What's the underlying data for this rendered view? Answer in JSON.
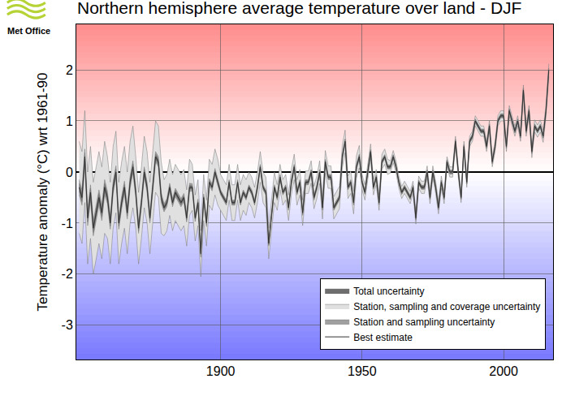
{
  "chart_data": {
    "type": "line",
    "title": "Northern hemisphere average temperature over land - DJF",
    "y_label": "Temperature anomaly (°C) wrt 1961-90",
    "logo": "Met Office",
    "x": [
      1850,
      1851,
      1852,
      1853,
      1854,
      1855,
      1856,
      1857,
      1858,
      1859,
      1860,
      1861,
      1862,
      1863,
      1864,
      1865,
      1866,
      1867,
      1868,
      1869,
      1870,
      1871,
      1872,
      1873,
      1874,
      1875,
      1876,
      1877,
      1878,
      1879,
      1880,
      1881,
      1882,
      1883,
      1884,
      1885,
      1886,
      1887,
      1888,
      1889,
      1890,
      1891,
      1892,
      1893,
      1894,
      1895,
      1896,
      1897,
      1898,
      1899,
      1900,
      1901,
      1902,
      1903,
      1904,
      1905,
      1906,
      1907,
      1908,
      1909,
      1910,
      1911,
      1912,
      1913,
      1914,
      1915,
      1916,
      1917,
      1918,
      1919,
      1920,
      1921,
      1922,
      1923,
      1924,
      1925,
      1926,
      1927,
      1928,
      1929,
      1930,
      1931,
      1932,
      1933,
      1934,
      1935,
      1936,
      1937,
      1938,
      1939,
      1940,
      1941,
      1942,
      1943,
      1944,
      1945,
      1946,
      1947,
      1948,
      1949,
      1950,
      1951,
      1952,
      1953,
      1954,
      1955,
      1956,
      1957,
      1958,
      1959,
      1960,
      1961,
      1962,
      1963,
      1964,
      1965,
      1966,
      1967,
      1968,
      1969,
      1970,
      1971,
      1972,
      1973,
      1974,
      1975,
      1976,
      1977,
      1978,
      1979,
      1980,
      1981,
      1982,
      1983,
      1984,
      1985,
      1986,
      1987,
      1988,
      1989,
      1990,
      1991,
      1992,
      1993,
      1994,
      1995,
      1996,
      1997,
      1998,
      1999,
      2000,
      2001,
      2002,
      2003,
      2004,
      2005,
      2006,
      2007,
      2008,
      2009,
      2010,
      2011,
      2012,
      2013,
      2014,
      2015,
      2016
    ],
    "series": [
      {
        "name": "Best estimate",
        "color": "#333333",
        "values": [
          -0.3,
          -0.5,
          0.3,
          -0.9,
          -0.4,
          -1.1,
          -0.8,
          -0.5,
          -0.8,
          -0.3,
          -0.5,
          -1.0,
          -0.3,
          0.0,
          -1.0,
          -0.6,
          -0.3,
          -0.8,
          -0.2,
          0.1,
          -0.4,
          -1.1,
          -0.6,
          0.0,
          -0.3,
          -0.9,
          -0.3,
          0.3,
          0.2,
          -0.5,
          -0.7,
          -0.6,
          -0.3,
          -0.6,
          -0.4,
          -0.5,
          -0.6,
          -0.5,
          -0.9,
          -0.3,
          -0.3,
          -0.9,
          -0.6,
          -1.6,
          -0.5,
          -1.0,
          -0.2,
          -0.3,
          0.0,
          -0.2,
          -0.4,
          -0.5,
          -0.6,
          -0.2,
          -0.6,
          -0.6,
          -0.2,
          -0.6,
          -0.4,
          -0.5,
          -0.3,
          -0.4,
          -0.6,
          -0.3,
          0.1,
          -0.3,
          -0.4,
          -1.4,
          -0.8,
          -0.3,
          -0.5,
          -0.1,
          -0.4,
          -0.3,
          -0.7,
          -0.2,
          0.1,
          -0.4,
          -0.2,
          -0.8,
          -0.2,
          -0.2,
          0.0,
          -0.5,
          -0.3,
          0.0,
          -0.7,
          0.2,
          -0.1,
          -0.1,
          -0.7,
          -0.6,
          -0.5,
          0.3,
          0.6,
          -0.3,
          -0.2,
          -0.6,
          0.1,
          0.3,
          -0.2,
          -0.4,
          0.0,
          0.4,
          -0.3,
          -0.1,
          -0.6,
          0.2,
          0.3,
          0.1,
          0.1,
          0.3,
          0.1,
          -0.2,
          -0.4,
          -0.3,
          -0.4,
          -0.5,
          -0.3,
          -0.9,
          -0.2,
          -0.3,
          -0.3,
          0.0,
          -0.5,
          0.0,
          -0.3,
          -0.7,
          -0.2,
          -0.5,
          0.2,
          0.0,
          0.0,
          0.6,
          0.0,
          -0.5,
          0.5,
          -0.2,
          0.6,
          0.7,
          1.0,
          0.9,
          0.8,
          0.8,
          0.5,
          0.9,
          0.2,
          0.5,
          1.0,
          1.1,
          1.1,
          0.5,
          1.2,
          1.0,
          0.8,
          1.0,
          0.7,
          1.6,
          0.8,
          1.2,
          0.4,
          0.9,
          0.8,
          0.9,
          0.7,
          1.2,
          2.0
        ]
      }
    ],
    "bands": [
      {
        "name": "Total uncertainty",
        "color": "#6e6e6e",
        "error": [
          0.08,
          0.08,
          0.08,
          0.08,
          0.08,
          0.08,
          0.08,
          0.08,
          0.08,
          0.08,
          0.06,
          0.06,
          0.06,
          0.06,
          0.06,
          0.06,
          0.06,
          0.06,
          0.06,
          0.06,
          0.05,
          0.05,
          0.05,
          0.05,
          0.05,
          0.05,
          0.05,
          0.05,
          0.05,
          0.05,
          0.04,
          0.04,
          0.04,
          0.04,
          0.04,
          0.04,
          0.04,
          0.04,
          0.04,
          0.04,
          0.03,
          0.03,
          0.03,
          0.03,
          0.03,
          0.03,
          0.03,
          0.03,
          0.03,
          0.03,
          0.03,
          0.03,
          0.03,
          0.03,
          0.03,
          0.03,
          0.03,
          0.03,
          0.03,
          0.03,
          0.03,
          0.03,
          0.03,
          0.03,
          0.03,
          0.03,
          0.03,
          0.03,
          0.03,
          0.03,
          0.03,
          0.03,
          0.03,
          0.03,
          0.03,
          0.03,
          0.03,
          0.03,
          0.03,
          0.03,
          0.03,
          0.03,
          0.03,
          0.03,
          0.03,
          0.03,
          0.03,
          0.03,
          0.03,
          0.03,
          0.03,
          0.03,
          0.03,
          0.03,
          0.03,
          0.03,
          0.03,
          0.03,
          0.03,
          0.03,
          0.03,
          0.03,
          0.03,
          0.03,
          0.03,
          0.03,
          0.03,
          0.03,
          0.03,
          0.03,
          0.03,
          0.03,
          0.03,
          0.03,
          0.03,
          0.03,
          0.03,
          0.03,
          0.03,
          0.03,
          0.03,
          0.03,
          0.03,
          0.03,
          0.03,
          0.03,
          0.03,
          0.03,
          0.03,
          0.03,
          0.03,
          0.03,
          0.03,
          0.03,
          0.03,
          0.03,
          0.03,
          0.03,
          0.03,
          0.03,
          0.03,
          0.03,
          0.03,
          0.03,
          0.03,
          0.03,
          0.03,
          0.03,
          0.03,
          0.03,
          0.03,
          0.03,
          0.03,
          0.03,
          0.03,
          0.03,
          0.03,
          0.03,
          0.03,
          0.03,
          0.03,
          0.03,
          0.03,
          0.03,
          0.03,
          0.03,
          0.03
        ]
      },
      {
        "name": "Station, sampling and coverage uncertainty",
        "color": "#e0e0e0",
        "error": [
          0.9,
          0.9,
          0.9,
          0.9,
          0.9,
          0.9,
          0.9,
          0.9,
          0.9,
          0.9,
          0.8,
          0.8,
          0.8,
          0.8,
          0.8,
          0.8,
          0.8,
          0.8,
          0.8,
          0.8,
          0.7,
          0.7,
          0.7,
          0.7,
          0.7,
          0.7,
          0.7,
          0.7,
          0.7,
          0.7,
          0.55,
          0.55,
          0.55,
          0.55,
          0.55,
          0.55,
          0.55,
          0.55,
          0.55,
          0.55,
          0.45,
          0.45,
          0.45,
          0.45,
          0.45,
          0.45,
          0.45,
          0.45,
          0.45,
          0.45,
          0.35,
          0.35,
          0.35,
          0.35,
          0.35,
          0.35,
          0.35,
          0.35,
          0.35,
          0.35,
          0.3,
          0.3,
          0.3,
          0.3,
          0.3,
          0.3,
          0.3,
          0.3,
          0.3,
          0.3,
          0.25,
          0.25,
          0.25,
          0.25,
          0.25,
          0.25,
          0.25,
          0.25,
          0.25,
          0.25,
          0.22,
          0.22,
          0.22,
          0.22,
          0.22,
          0.22,
          0.22,
          0.22,
          0.22,
          0.22,
          0.22,
          0.22,
          0.22,
          0.22,
          0.22,
          0.22,
          0.22,
          0.22,
          0.22,
          0.22,
          0.15,
          0.15,
          0.15,
          0.15,
          0.15,
          0.15,
          0.15,
          0.15,
          0.15,
          0.15,
          0.12,
          0.12,
          0.12,
          0.12,
          0.12,
          0.12,
          0.12,
          0.12,
          0.12,
          0.12,
          0.12,
          0.12,
          0.12,
          0.12,
          0.12,
          0.12,
          0.12,
          0.12,
          0.12,
          0.12,
          0.1,
          0.1,
          0.1,
          0.1,
          0.1,
          0.1,
          0.1,
          0.1,
          0.1,
          0.1,
          0.1,
          0.1,
          0.1,
          0.1,
          0.1,
          0.1,
          0.1,
          0.1,
          0.1,
          0.1,
          0.1,
          0.1,
          0.1,
          0.1,
          0.1,
          0.1,
          0.1,
          0.1,
          0.1,
          0.1,
          0.12,
          0.12,
          0.12,
          0.12,
          0.12,
          0.12,
          0.12
        ]
      },
      {
        "name": "Station and sampling uncertainty",
        "color": "#a0a0a0",
        "error": [
          0.15,
          0.15,
          0.15,
          0.15,
          0.15,
          0.15,
          0.15,
          0.15,
          0.15,
          0.15,
          0.12,
          0.12,
          0.12,
          0.12,
          0.12,
          0.12,
          0.12,
          0.12,
          0.12,
          0.12,
          0.1,
          0.1,
          0.1,
          0.1,
          0.1,
          0.1,
          0.1,
          0.1,
          0.1,
          0.1,
          0.08,
          0.08,
          0.08,
          0.08,
          0.08,
          0.08,
          0.08,
          0.08,
          0.08,
          0.08,
          0.07,
          0.07,
          0.07,
          0.07,
          0.07,
          0.07,
          0.07,
          0.07,
          0.07,
          0.07,
          0.05,
          0.05,
          0.05,
          0.05,
          0.05,
          0.05,
          0.05,
          0.05,
          0.05,
          0.05,
          0.05,
          0.05,
          0.05,
          0.05,
          0.05,
          0.05,
          0.05,
          0.05,
          0.05,
          0.05,
          0.05,
          0.05,
          0.05,
          0.05,
          0.05,
          0.05,
          0.05,
          0.05,
          0.05,
          0.05,
          0.05,
          0.05,
          0.05,
          0.05,
          0.05,
          0.05,
          0.05,
          0.05,
          0.05,
          0.05,
          0.05,
          0.05,
          0.05,
          0.05,
          0.05,
          0.05,
          0.05,
          0.05,
          0.05,
          0.05,
          0.04,
          0.04,
          0.04,
          0.04,
          0.04,
          0.04,
          0.04,
          0.04,
          0.04,
          0.04,
          0.04,
          0.04,
          0.04,
          0.04,
          0.04,
          0.04,
          0.04,
          0.04,
          0.04,
          0.04,
          0.04,
          0.04,
          0.04,
          0.04,
          0.04,
          0.04,
          0.04,
          0.04,
          0.04,
          0.04,
          0.04,
          0.04,
          0.04,
          0.04,
          0.04,
          0.04,
          0.04,
          0.04,
          0.04,
          0.04,
          0.04,
          0.04,
          0.04,
          0.04,
          0.04,
          0.04,
          0.04,
          0.04,
          0.04,
          0.04,
          0.04,
          0.04,
          0.04,
          0.04,
          0.04,
          0.04,
          0.04,
          0.04,
          0.04,
          0.04,
          0.04,
          0.04,
          0.04,
          0.04,
          0.04,
          0.04,
          0.04
        ]
      }
    ],
    "xlim": [
      1849,
      2017.5
    ],
    "xticks": [
      1900,
      1950,
      2000
    ],
    "ylim": [
      -3.67,
      2.89
    ],
    "yticks": [
      -3,
      -2,
      -1,
      0,
      1,
      2
    ],
    "grid": true,
    "legend": "lower right"
  }
}
